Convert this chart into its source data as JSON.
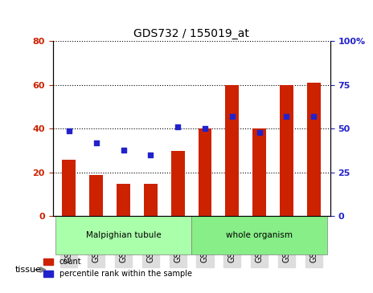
{
  "title": "GDS732 / 155019_at",
  "categories": [
    "GSM29173",
    "GSM29174",
    "GSM29175",
    "GSM29176",
    "GSM29177",
    "GSM29178",
    "GSM29179",
    "GSM29180",
    "GSM29181",
    "GSM29182"
  ],
  "counts": [
    26,
    19,
    15,
    15,
    30,
    40,
    60,
    40,
    60,
    61
  ],
  "percentiles": [
    49,
    42,
    38,
    35,
    51,
    50,
    57,
    48,
    57,
    57
  ],
  "left_ylim": [
    0,
    80
  ],
  "right_ylim": [
    0,
    100
  ],
  "left_yticks": [
    0,
    20,
    40,
    60,
    80
  ],
  "right_yticks": [
    0,
    25,
    50,
    75,
    100
  ],
  "right_yticklabels": [
    "0",
    "25",
    "50",
    "75",
    "100%"
  ],
  "bar_color": "#cc2200",
  "dot_color": "#2222cc",
  "tissue_groups": [
    {
      "label": "Malpighian tubule",
      "start": 0,
      "end": 5,
      "color": "#aaffaa"
    },
    {
      "label": "whole organism",
      "start": 5,
      "end": 10,
      "color": "#88ee88"
    }
  ],
  "legend_entries": [
    {
      "label": "count",
      "color": "#cc2200"
    },
    {
      "label": "percentile rank within the sample",
      "color": "#2222cc"
    }
  ],
  "tissue_label": "tissue",
  "grid_color": "black",
  "grid_linestyle": "dotted",
  "grid_linewidth": 0.8,
  "axis_label_color_left": "#cc2200",
  "axis_label_color_right": "#2222cc",
  "bar_width": 0.5
}
